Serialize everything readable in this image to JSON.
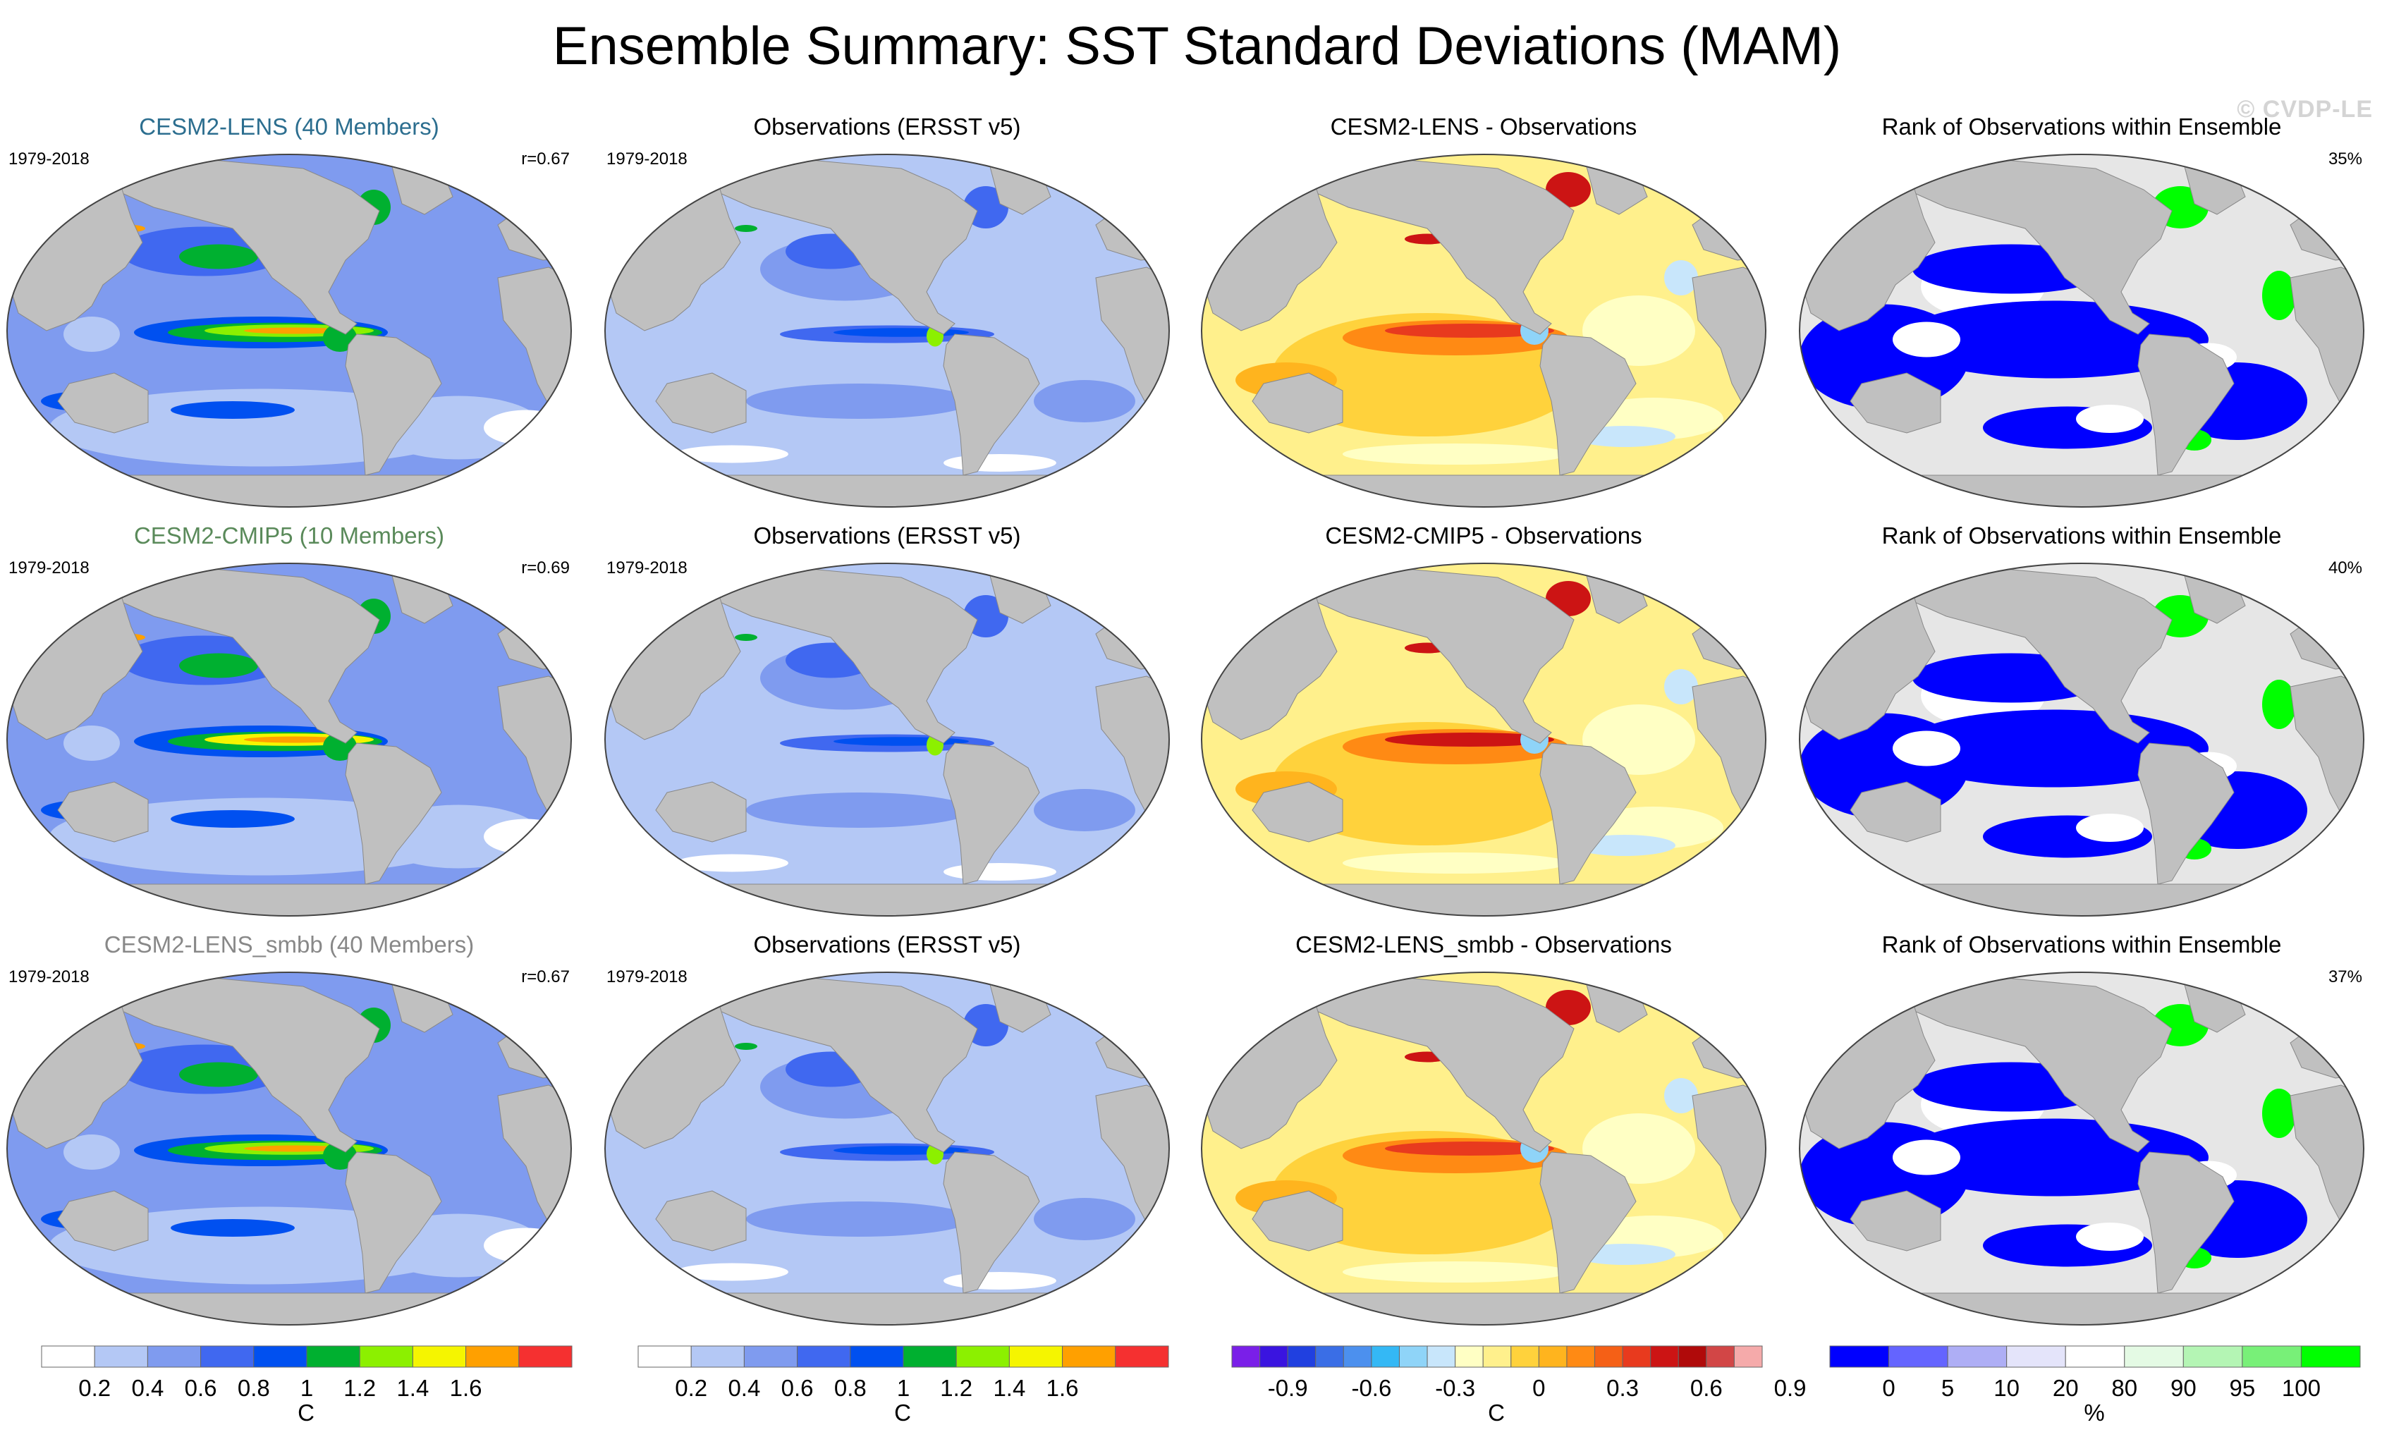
{
  "title": "Ensemble Summary: SST Standard Deviations (MAM)",
  "watermark": "© CVDP-LE",
  "period": "1979-2018",
  "colors": {
    "land": "#c0c0c0",
    "title_lens": "#2c6e8f",
    "title_cmip5": "#5a8a5a",
    "title_smbb": "#888888"
  },
  "rows": [
    {
      "model_title": "CESM2-LENS (40 Members)",
      "title_color": "#2c6e8f",
      "r": "r=0.67",
      "obs_title": "Observations (ERSST v5)",
      "diff_title": "CESM2-LENS - Observations",
      "rank_title": "Rank of Observations within Ensemble",
      "rank_pct": "35%"
    },
    {
      "model_title": "CESM2-CMIP5 (10 Members)",
      "title_color": "#5a8a5a",
      "r": "r=0.69",
      "obs_title": "Observations (ERSST v5)",
      "diff_title": "CESM2-CMIP5 - Observations",
      "rank_title": "Rank of Observations within Ensemble",
      "rank_pct": "40%"
    },
    {
      "model_title": "CESM2-LENS_smbb (40 Members)",
      "title_color": "#888888",
      "r": "r=0.67",
      "obs_title": "Observations (ERSST v5)",
      "diff_title": "CESM2-LENS_smbb - Observations",
      "rank_title": "Rank of Observations within Ensemble",
      "rank_pct": "37%"
    }
  ],
  "chart_data": {
    "type": "heatmap",
    "projection": "Robinson, Pacific-centered",
    "colorbars": [
      {
        "unit": "C",
        "colors": [
          "#ffffff",
          "#b4c8f5",
          "#7f9bef",
          "#4068f0",
          "#0050f0",
          "#00b030",
          "#8cf000",
          "#f5f500",
          "#ffa000",
          "#f53030"
        ],
        "labels": [
          "0.2",
          "0.4",
          "0.6",
          "0.8",
          "1",
          "1.2",
          "1.4",
          "1.6"
        ]
      },
      {
        "unit": "C",
        "colors": [
          "#ffffff",
          "#b4c8f5",
          "#7f9bef",
          "#4068f0",
          "#0050f0",
          "#00b030",
          "#8cf000",
          "#f5f500",
          "#ffa000",
          "#f53030"
        ],
        "labels": [
          "0.2",
          "0.4",
          "0.6",
          "0.8",
          "1",
          "1.2",
          "1.4",
          "1.6"
        ]
      },
      {
        "unit": "C",
        "colors": [
          "#7a1fe8",
          "#3a14e0",
          "#2040e0",
          "#3a6ee6",
          "#4c90ee",
          "#34b8f5",
          "#8fd4f8",
          "#c8e6fb",
          "#ffffc4",
          "#fff08c",
          "#ffd23c",
          "#ffb41e",
          "#ff8a14",
          "#f56016",
          "#e83a1e",
          "#cc1414",
          "#b00a0a",
          "#d24646",
          "#f5aaaa"
        ],
        "labels": [
          "-0.9",
          "-0.6",
          "-0.3",
          "0",
          "0.3",
          "0.6",
          "0.9"
        ]
      },
      {
        "unit": "%",
        "colors": [
          "#0000ff",
          "#6464ff",
          "#aeaef5",
          "#e4e4fa",
          "#ffffff",
          "#e4fae4",
          "#b4f5b4",
          "#78f078",
          "#00ff00"
        ],
        "labels": [
          "0",
          "5",
          "10",
          "20",
          "80",
          "90",
          "95",
          "100"
        ]
      }
    ]
  }
}
